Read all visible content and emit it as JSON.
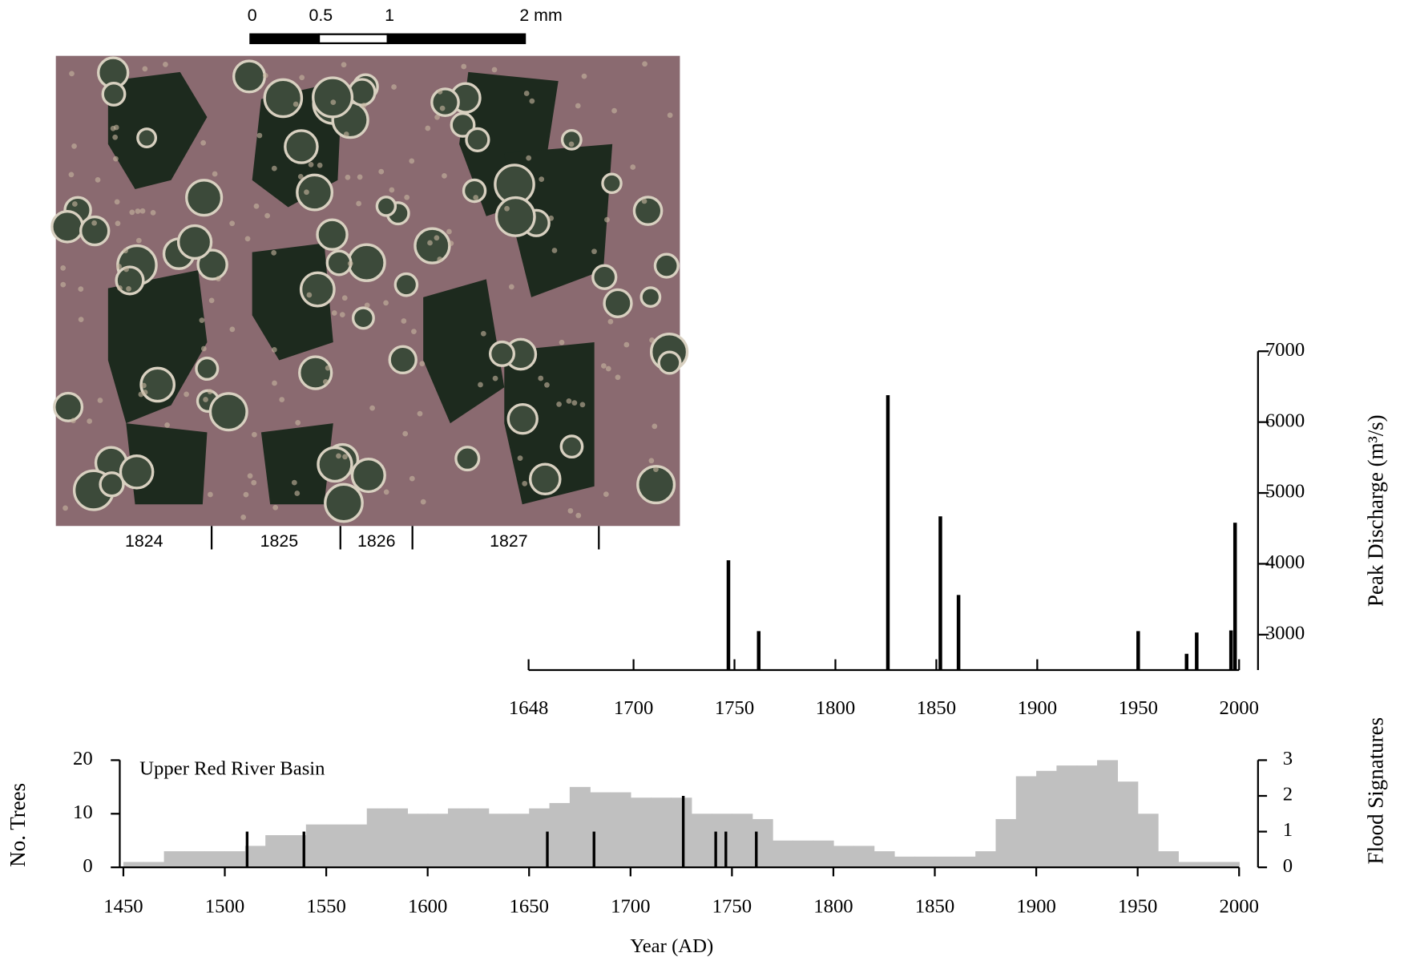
{
  "photo": {
    "scale_ticks": [
      0,
      0.5,
      1,
      {
        "value": 2,
        "label": "2 mm"
      }
    ],
    "ring_years": [
      "1824",
      "1825",
      "1826",
      "1827"
    ]
  },
  "chart_data": [
    {
      "type": "bar",
      "ylabel": "Peak Discharge (m³/s)",
      "x": [
        1747,
        1762,
        1826,
        1852,
        1861,
        1950,
        1974,
        1979,
        1996,
        1998
      ],
      "values": [
        4050,
        3050,
        6380,
        4670,
        3560,
        3050,
        2730,
        3030,
        3060,
        4580
      ],
      "color": "#000000",
      "xlim": [
        1648,
        2000
      ],
      "xticks": [
        1648,
        1700,
        1750,
        1800,
        1850,
        1900,
        1950,
        2000
      ],
      "ylim": [
        2500,
        7000
      ],
      "yticks": [
        3000,
        4000,
        5000,
        6000,
        7000
      ],
      "grid": false
    },
    {
      "type": "step-area",
      "annotation": "Upper Red River Basin",
      "ylabel": "No. Trees",
      "y2label": "Flood Signatures",
      "xlabel": "Year (AD)",
      "x": [
        1450,
        1460,
        1470,
        1480,
        1490,
        1500,
        1510,
        1520,
        1530,
        1540,
        1550,
        1560,
        1570,
        1580,
        1590,
        1600,
        1610,
        1620,
        1630,
        1640,
        1650,
        1660,
        1670,
        1680,
        1690,
        1700,
        1710,
        1720,
        1730,
        1740,
        1750,
        1760,
        1770,
        1780,
        1790,
        1800,
        1810,
        1820,
        1830,
        1840,
        1850,
        1860,
        1870,
        1880,
        1890,
        1900,
        1910,
        1920,
        1930,
        1940,
        1950,
        1960,
        1970,
        1980,
        1990
      ],
      "values": [
        1,
        1,
        3,
        3,
        3,
        3,
        4,
        6,
        6,
        8,
        8,
        8,
        11,
        11,
        10,
        10,
        11,
        11,
        10,
        10,
        11,
        12,
        15,
        14,
        14,
        13,
        13,
        13,
        10,
        10,
        10,
        9,
        5,
        5,
        5,
        4,
        4,
        3,
        2,
        2,
        2,
        2,
        3,
        9,
        17,
        18,
        19,
        19,
        20,
        16,
        10,
        3,
        1,
        1,
        1
      ],
      "color": "#c0c0c0",
      "series": [
        {
          "x": [
            1511,
            1539,
            1659,
            1682,
            1726,
            1742,
            1747,
            1762
          ],
          "values": [
            1,
            1,
            1,
            1,
            2,
            1,
            1,
            1
          ],
          "axis": "y2",
          "color": "#000000"
        }
      ],
      "xlim": [
        1450,
        2000
      ],
      "xticks": [
        1450,
        1500,
        1550,
        1600,
        1650,
        1700,
        1750,
        1800,
        1850,
        1900,
        1950,
        2000
      ],
      "ylim": [
        0,
        20
      ],
      "yticks": [
        0,
        10,
        20
      ],
      "y2lim": [
        0,
        3
      ],
      "y2ticks": [
        0,
        1,
        2,
        3
      ],
      "grid": false
    }
  ]
}
